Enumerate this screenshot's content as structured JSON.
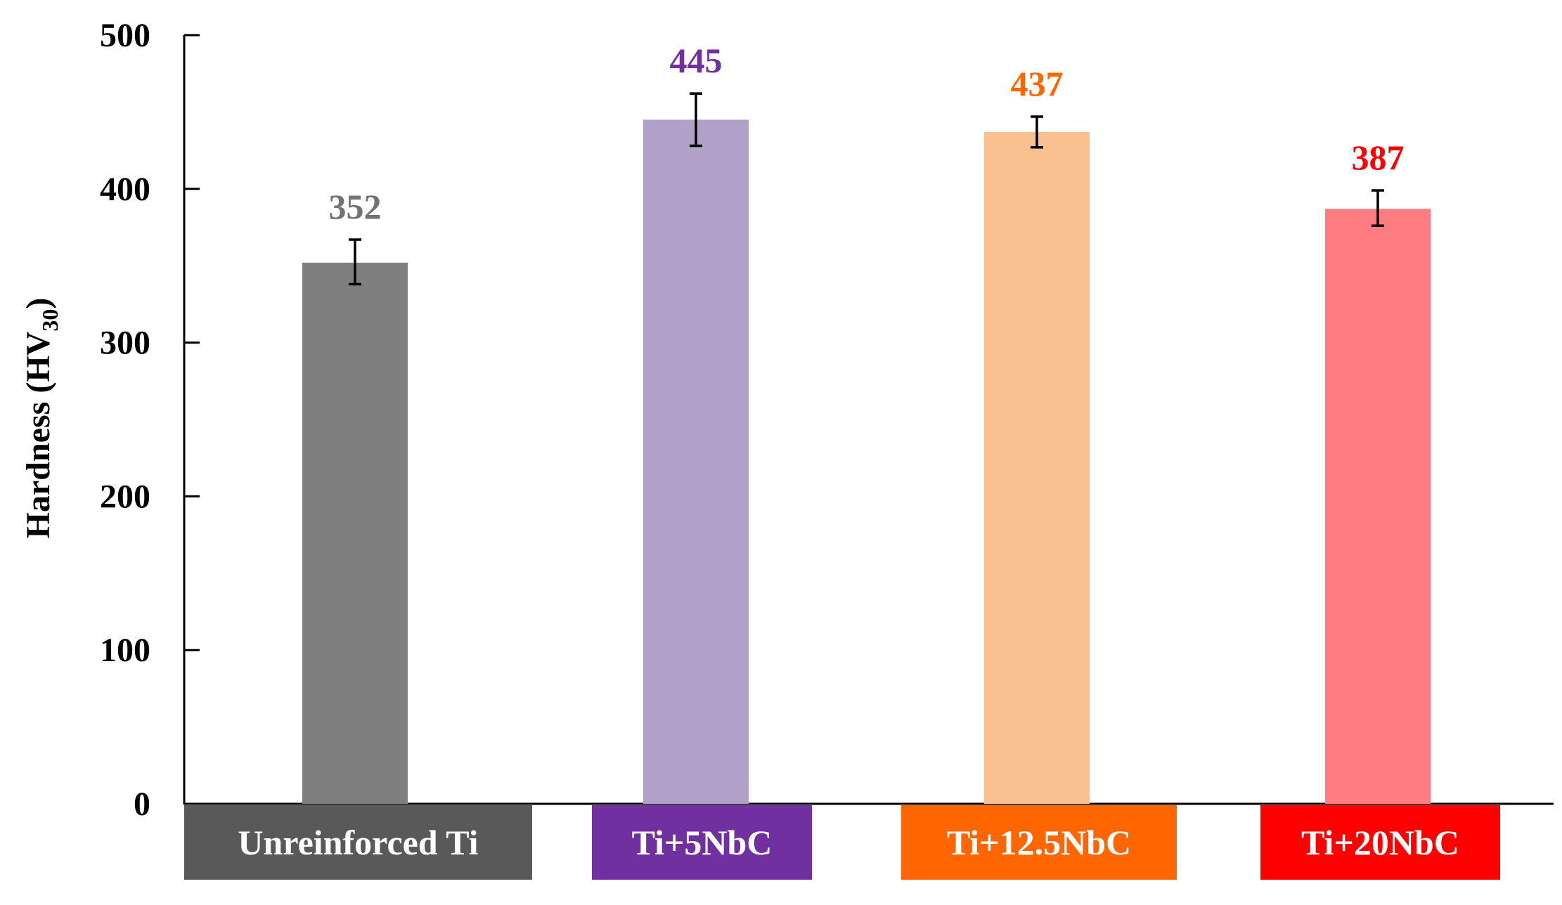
{
  "chart_data": {
    "type": "bar",
    "categories": [
      "Unreinforced Ti",
      "Ti+5NbC",
      "Ti+12.5NbC",
      "Ti+20NbC"
    ],
    "values": [
      352,
      445,
      437,
      387
    ],
    "error_low": [
      338,
      428,
      427,
      376
    ],
    "error_high": [
      367,
      462,
      447,
      399
    ],
    "data_labels": [
      "352",
      "445",
      "437",
      "387"
    ],
    "bar_colors": [
      "#7f7f7f",
      "#b1a0c7",
      "#f9c090",
      "#ff7c80"
    ],
    "label_colors": [
      "#767171",
      "#7030a0",
      "#ff6600",
      "#ff0000"
    ],
    "category_box_colors": [
      "#595959",
      "#7030a0",
      "#ff6600",
      "#ff0000"
    ],
    "category_text_color": "#ffffff",
    "ylabel": "Hardness (HV",
    "ylabel_sub": "30",
    "ylabel_suffix": ")",
    "ylim": [
      0,
      500
    ],
    "yticks": [
      "0",
      "100",
      "200",
      "300",
      "400",
      "500"
    ],
    "grid": false
  }
}
